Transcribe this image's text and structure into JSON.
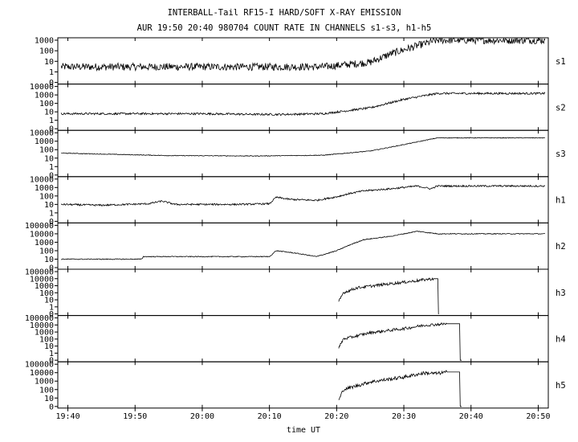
{
  "chart_data": {
    "type": "line",
    "title": "INTERBALL-Tail RF15-I HARD/SOFT X-RAY EMISSION",
    "subtitle": "AUR 19:50 20:40 980704  COUNT RATE IN CHANNELS s1-s3, h1-h5",
    "xlabel": "time UT",
    "x_ticks": [
      "19:40",
      "19:50",
      "20:00",
      "20:10",
      "20:20",
      "20:30",
      "20:40",
      "20:50"
    ],
    "xlim_minutes": [
      -1.5,
      71.5
    ],
    "y_scale": "log",
    "grid": false,
    "panels": [
      {
        "name": "s1",
        "ymin": 0,
        "ytick_labels": [
          "1000",
          "100",
          "10",
          "1",
          "0"
        ],
        "ytick_values": [
          1000,
          100,
          10,
          1,
          0
        ],
        "series": {
          "x": [
            -1,
            0,
            10,
            20,
            28,
            38,
            45,
            48,
            52,
            55,
            71
          ],
          "y": [
            3,
            3,
            3,
            3,
            3,
            3,
            8,
            50,
            300,
            1000,
            1000
          ],
          "noise_decades": 0.35
        }
      },
      {
        "name": "s2",
        "ymin": 0,
        "ytick_labels": [
          "10000",
          "1000",
          "100",
          "10",
          "1",
          "0"
        ],
        "ytick_values": [
          10000,
          1000,
          100,
          10,
          1,
          0
        ],
        "series": {
          "x": [
            -1,
            10,
            20,
            28,
            32,
            38,
            45,
            50,
            55,
            71
          ],
          "y": [
            6,
            6,
            6,
            5,
            5,
            6,
            30,
            300,
            1500,
            1500
          ],
          "noise_decades": 0.12
        }
      },
      {
        "name": "s3",
        "ymin": 0,
        "ytick_labels": [
          "10000",
          "1000",
          "100",
          "10",
          "1",
          "0"
        ],
        "ytick_values": [
          10000,
          1000,
          100,
          10,
          1,
          0
        ],
        "series": {
          "x": [
            -1,
            5,
            15,
            28,
            38,
            45,
            50,
            55,
            71
          ],
          "y": [
            40,
            30,
            20,
            18,
            22,
            70,
            400,
            2500,
            2500
          ],
          "noise_decades": 0.04
        }
      },
      {
        "name": "h1",
        "ymin": 0,
        "ytick_labels": [
          "10000",
          "1000",
          "100",
          "10",
          "1",
          "0"
        ],
        "ytick_values": [
          10000,
          1000,
          100,
          10,
          1,
          0
        ],
        "series": {
          "x": [
            -1,
            5,
            12,
            14,
            16,
            25,
            30,
            31,
            33,
            37,
            40,
            42,
            44,
            48,
            52,
            54,
            55,
            71
          ],
          "y": [
            10,
            8,
            12,
            25,
            10,
            10,
            12,
            70,
            40,
            30,
            80,
            200,
            400,
            700,
            1500,
            700,
            1500,
            1500
          ],
          "noise_decades": 0.1
        }
      },
      {
        "name": "h2",
        "ymin": 0,
        "ytick_labels": [
          "100000",
          "10000",
          "1000",
          "100",
          "10",
          "0"
        ],
        "ytick_values": [
          100000,
          10000,
          1000,
          100,
          10,
          0
        ],
        "series": {
          "x": [
            -1,
            11,
            11.2,
            30,
            31,
            34,
            37,
            40,
            42,
            44,
            48,
            52,
            55,
            71
          ],
          "y": [
            10,
            10,
            20,
            20,
            100,
            50,
            20,
            100,
            500,
            2000,
            5000,
            20000,
            10000,
            10000
          ],
          "noise_decades": 0.05
        }
      },
      {
        "name": "h3",
        "ymin": 0,
        "ytick_labels": [
          "100000",
          "10000",
          "1000",
          "100",
          "10",
          "1",
          "0"
        ],
        "ytick_values": [
          100000,
          10000,
          1000,
          100,
          10,
          1,
          0
        ],
        "series": {
          "x": [
            40.3,
            41,
            43,
            47,
            51,
            53.5,
            54.4,
            55.2
          ],
          "y": [
            5,
            100,
            500,
            1500,
            4000,
            8000,
            10000,
            0
          ],
          "noise_decades": 0.2
        }
      },
      {
        "name": "h4",
        "ymin": 0,
        "ytick_labels": [
          "100000",
          "10000",
          "1000",
          "100",
          "10",
          "1",
          "0"
        ],
        "ytick_values": [
          100000,
          10000,
          1000,
          100,
          10,
          1,
          0
        ],
        "series": {
          "x": [
            40.3,
            41,
            45,
            50,
            53,
            55,
            56.4,
            58.6
          ],
          "y": [
            5,
            100,
            800,
            3000,
            9000,
            12000,
            15000,
            0
          ],
          "noise_decades": 0.2
        }
      },
      {
        "name": "h5",
        "ymin": 0,
        "ytick_labels": [
          "100000",
          "10000",
          "1000",
          "100",
          "10",
          "0"
        ],
        "ytick_values": [
          100000,
          10000,
          1000,
          100,
          10,
          0
        ],
        "series": {
          "x": [
            40.3,
            41,
            45,
            50,
            53,
            55,
            56.4,
            58.6
          ],
          "y": [
            5,
            100,
            800,
            3000,
            9000,
            8000,
            12000,
            0
          ],
          "noise_decades": 0.2
        }
      }
    ]
  }
}
